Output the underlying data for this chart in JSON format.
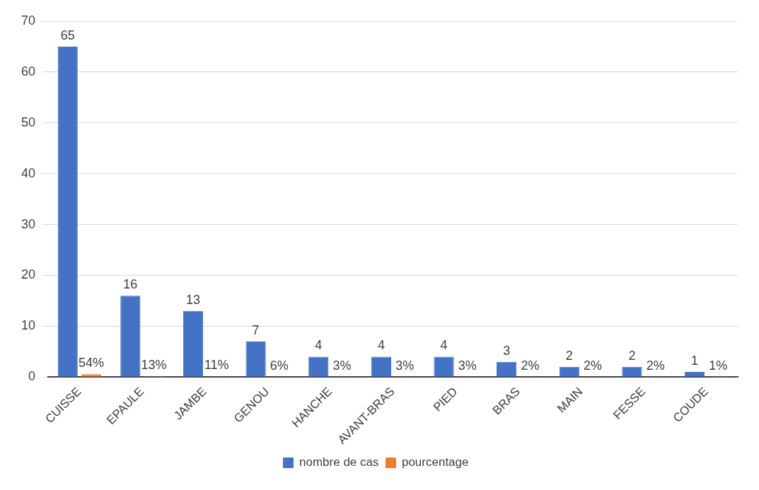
{
  "chart_data": {
    "type": "bar",
    "categories": [
      "CUISSE",
      "EPAULE",
      "JAMBE",
      "GENOU",
      "HANCHE",
      "AVANT-BRAS",
      "PIED",
      "BRAS",
      "MAIN",
      "FESSE",
      "COUDE"
    ],
    "series": [
      {
        "name": "nombre de cas",
        "color": "#4472c4",
        "values": [
          65,
          16,
          13,
          7,
          4,
          4,
          4,
          3,
          2,
          2,
          1
        ],
        "value_labels": [
          "65",
          "16",
          "13",
          "7",
          "4",
          "4",
          "4",
          "3",
          "2",
          "2",
          "1"
        ]
      },
      {
        "name": "pourcentage",
        "color": "#ed7d31",
        "values": [
          0.54,
          0.13,
          0.11,
          0.06,
          0.03,
          0.03,
          0.03,
          0.02,
          0.02,
          0.02,
          0.01
        ],
        "value_labels": [
          "54%",
          "13%",
          "11%",
          "6%",
          "3%",
          "3%",
          "3%",
          "2%",
          "2%",
          "2%",
          "1%"
        ]
      }
    ],
    "ylim": [
      0,
      70
    ],
    "yticks": [
      0,
      10,
      20,
      30,
      40,
      50,
      60,
      70
    ],
    "grid": "y",
    "legend": "bottom"
  }
}
